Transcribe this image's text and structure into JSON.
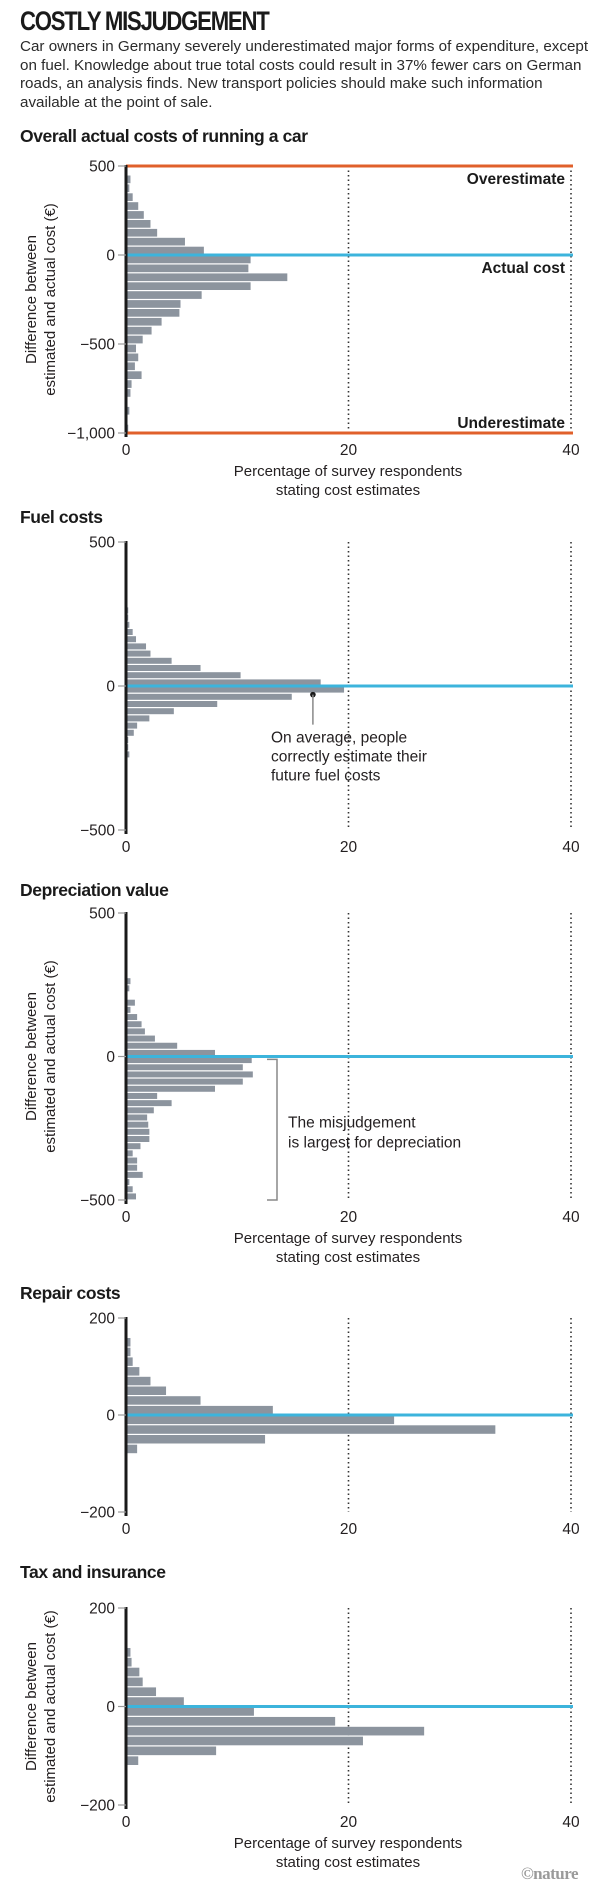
{
  "header": {
    "title": "COSTLY MISJUDGEMENT",
    "subtitle": "Car owners in Germany severely underestimated major forms of expenditure, except on fuel. Knowledge about true total costs could result in 37% fewer cars on German roads, an analysis finds. New transport policies should make such information available at the point of sale."
  },
  "credit": "©nature",
  "colors": {
    "bar": "#8c949e",
    "axis": "#1a1a1a",
    "actual_line": "#3cb4dc",
    "estimate_line": "#e0602b",
    "dotted": "#333333"
  },
  "chart_data": [
    {
      "type": "bar",
      "orientation": "horizontal-histogram",
      "title": "Overall actual costs of running a car",
      "ylabel": "Difference between estimated and actual cost (€)",
      "xlabel": "Percentage of survey respondents stating cost estimates",
      "ylim": [
        -1000,
        500
      ],
      "xlim": [
        0,
        40
      ],
      "yticks": [
        500,
        0,
        -500,
        -1000
      ],
      "ytick_labels": [
        "500",
        "0",
        "−500",
        "−1,000"
      ],
      "xticks": [
        0,
        20,
        40
      ],
      "xtick_labels": [
        "0",
        "20",
        "40"
      ],
      "gridlines_x": [
        20,
        40
      ],
      "bin_size": 50,
      "bins_top": 500,
      "values": [
        0,
        0.4,
        0.3,
        0.6,
        1.1,
        1.6,
        2.2,
        2.8,
        5.3,
        7.0,
        11.2,
        11.0,
        14.5,
        11.2,
        6.8,
        4.9,
        4.8,
        3.2,
        2.3,
        1.5,
        0.9,
        1.1,
        0.8,
        1.4,
        0.5,
        0.4,
        0,
        0.3,
        0,
        0.2
      ],
      "reference_lines": [
        {
          "y": 500,
          "label": "Overestimate",
          "color": "#e0602b"
        },
        {
          "y": 0,
          "label": "Actual cost",
          "color": "#3cb4dc"
        },
        {
          "y": -1000,
          "label": "Underestimate",
          "color": "#e0602b"
        }
      ]
    },
    {
      "type": "bar",
      "orientation": "horizontal-histogram",
      "title": "Fuel costs",
      "ylabel": "",
      "xlabel": "",
      "ylim": [
        -500,
        500
      ],
      "xlim": [
        0,
        40
      ],
      "yticks": [
        500,
        0,
        -500
      ],
      "ytick_labels": [
        "500",
        "0",
        "−500"
      ],
      "xticks": [
        0,
        20,
        40
      ],
      "xtick_labels": [
        "0",
        "20",
        "40"
      ],
      "gridlines_x": [
        20,
        40
      ],
      "bin_size": 25,
      "bins_top": 275,
      "values": [
        0.2,
        0.2,
        0.3,
        0.6,
        0.9,
        1.8,
        2.2,
        4.1,
        6.7,
        10.3,
        17.5,
        19.6,
        14.9,
        8.2,
        4.3,
        2.1,
        1.0,
        0.7,
        0.2,
        0.2,
        0.3
      ],
      "reference_lines": [
        {
          "y": 0,
          "label": "",
          "color": "#3cb4dc"
        }
      ],
      "annotation": {
        "text": [
          "On average, people",
          "correctly estimate their",
          "future fuel costs"
        ],
        "points_to": {
          "x": 16.8,
          "y": -30
        }
      }
    },
    {
      "type": "bar",
      "orientation": "horizontal-histogram",
      "title": "Depreciation value",
      "ylabel": "Difference between estimated and actual cost (€)",
      "xlabel": "Percentage of survey respondents stating cost estimates",
      "ylim": [
        -500,
        500
      ],
      "xlim": [
        0,
        40
      ],
      "yticks": [
        500,
        0,
        -500
      ],
      "ytick_labels": [
        "500",
        "0",
        "−500"
      ],
      "xticks": [
        0,
        20,
        40
      ],
      "xtick_labels": [
        "0",
        "20",
        "40"
      ],
      "gridlines_x": [
        20,
        40
      ],
      "bin_size": 25,
      "bins_top": 275,
      "values": [
        0.4,
        0.3,
        0,
        0.8,
        0.4,
        1.0,
        1.4,
        1.7,
        2.6,
        4.6,
        8.0,
        11.3,
        10.5,
        11.4,
        10.5,
        8.0,
        2.8,
        4.1,
        2.5,
        1.9,
        2.0,
        2.1,
        2.1,
        1.3,
        0.6,
        1.0,
        1.0,
        1.5,
        0.3,
        0.6,
        0.9
      ],
      "reference_lines": [
        {
          "y": 0,
          "label": "",
          "color": "#3cb4dc"
        }
      ],
      "annotation": {
        "text": [
          "The misjudgement",
          "is largest for depreciation"
        ],
        "bracket": {
          "y_from": -10,
          "y_to": -500
        }
      }
    },
    {
      "type": "bar",
      "orientation": "horizontal-histogram",
      "title": "Repair costs",
      "ylabel": "",
      "xlabel": "",
      "ylim": [
        -200,
        200
      ],
      "xlim": [
        0,
        40
      ],
      "yticks": [
        200,
        0,
        -200
      ],
      "ytick_labels": [
        "200",
        "0",
        "−200"
      ],
      "xticks": [
        0,
        20,
        40
      ],
      "xtick_labels": [
        "0",
        "20",
        "40"
      ],
      "gridlines_x": [
        20,
        40
      ],
      "bin_size": 20,
      "bins_top": 160,
      "values": [
        0.4,
        0.4,
        0.6,
        1.2,
        2.2,
        3.6,
        6.7,
        13.2,
        24.1,
        33.2,
        12.5,
        1.0
      ],
      "reference_lines": [
        {
          "y": 0,
          "label": "",
          "color": "#3cb4dc"
        }
      ]
    },
    {
      "type": "bar",
      "orientation": "horizontal-histogram",
      "title": "Tax and insurance",
      "ylabel": "Difference between estimated and actual cost (€)",
      "xlabel": "Percentage of survey respondents stating cost estimates",
      "ylim": [
        -200,
        200
      ],
      "xlim": [
        0,
        40
      ],
      "yticks": [
        200,
        0,
        -200
      ],
      "ytick_labels": [
        "200",
        "0",
        "−200"
      ],
      "xticks": [
        0,
        20,
        40
      ],
      "xtick_labels": [
        "0",
        "20",
        "40"
      ],
      "gridlines_x": [
        20,
        40
      ],
      "bin_size": 20,
      "bins_top": 120,
      "values": [
        0.4,
        0.5,
        1.2,
        1.5,
        2.7,
        5.2,
        11.5,
        18.8,
        26.8,
        21.3,
        8.1,
        1.1
      ],
      "reference_lines": [
        {
          "y": 0,
          "label": "",
          "color": "#3cb4dc"
        }
      ]
    }
  ]
}
